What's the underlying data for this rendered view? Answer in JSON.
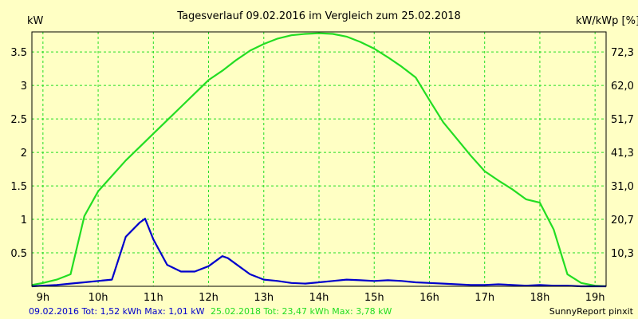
{
  "chart_data": {
    "type": "line",
    "title": "Tagesverlauf 09.02.2016 im Vergleich zum 25.02.2018",
    "ylabel_left": "kW",
    "ylabel_right": "kW/kWp [%]",
    "x_tick_labels": [
      "9h",
      "10h",
      "11h",
      "12h",
      "13h",
      "14h",
      "15h",
      "16h",
      "17h",
      "18h",
      "19h"
    ],
    "y_tick_labels_left": [
      "0.5",
      "1",
      "1.5",
      "2",
      "2.5",
      "3",
      "3.5"
    ],
    "y_tick_labels_right": [
      "10,3",
      "20,7",
      "31,0",
      "41,3",
      "51,7",
      "62,0",
      "72,3"
    ],
    "xlim": [
      8.8,
      19.2
    ],
    "ylim": [
      0,
      3.8
    ],
    "grid": true,
    "series": [
      {
        "name": "25.02.2018",
        "color": "#22DD22",
        "x": [
          8.8,
          9.0,
          9.25,
          9.5,
          9.75,
          10.0,
          10.25,
          10.5,
          10.75,
          11.0,
          11.25,
          11.5,
          11.75,
          12.0,
          12.25,
          12.5,
          12.75,
          13.0,
          13.25,
          13.5,
          13.75,
          14.0,
          14.25,
          14.5,
          14.75,
          15.0,
          15.25,
          15.5,
          15.75,
          16.0,
          16.25,
          16.5,
          16.75,
          17.0,
          17.25,
          17.5,
          17.75,
          18.0,
          18.25,
          18.5,
          18.75,
          19.0,
          19.2
        ],
        "y": [
          0.02,
          0.05,
          0.1,
          0.18,
          1.05,
          1.42,
          1.65,
          1.88,
          2.08,
          2.28,
          2.48,
          2.68,
          2.88,
          3.08,
          3.22,
          3.38,
          3.52,
          3.62,
          3.7,
          3.75,
          3.77,
          3.78,
          3.77,
          3.73,
          3.65,
          3.55,
          3.42,
          3.28,
          3.12,
          2.78,
          2.45,
          2.2,
          1.95,
          1.72,
          1.58,
          1.45,
          1.3,
          1.25,
          0.85,
          0.18,
          0.05,
          0.01,
          0.0
        ]
      },
      {
        "name": "09.02.2016",
        "color": "#0000CC",
        "x": [
          8.8,
          9.0,
          9.25,
          9.5,
          9.75,
          10.0,
          10.25,
          10.5,
          10.75,
          10.85,
          11.0,
          11.25,
          11.5,
          11.75,
          12.0,
          12.25,
          12.35,
          12.5,
          12.75,
          13.0,
          13.25,
          13.5,
          13.75,
          14.0,
          14.25,
          14.5,
          14.75,
          15.0,
          15.25,
          15.5,
          15.75,
          16.0,
          16.25,
          16.5,
          16.75,
          17.0,
          17.25,
          17.5,
          17.75,
          18.0,
          18.25,
          18.5,
          18.75,
          19.0,
          19.2
        ],
        "y": [
          0.0,
          0.01,
          0.02,
          0.04,
          0.06,
          0.08,
          0.1,
          0.74,
          0.95,
          1.01,
          0.7,
          0.32,
          0.22,
          0.22,
          0.3,
          0.45,
          0.42,
          0.33,
          0.18,
          0.1,
          0.08,
          0.05,
          0.04,
          0.06,
          0.08,
          0.1,
          0.09,
          0.08,
          0.09,
          0.08,
          0.06,
          0.05,
          0.04,
          0.03,
          0.02,
          0.02,
          0.03,
          0.02,
          0.01,
          0.02,
          0.01,
          0.01,
          0.0,
          0.0,
          0.0
        ]
      }
    ]
  },
  "footer": {
    "left_part1": "09.02.2016 Tot: 1,52 kWh Max: 1,01 kW",
    "left_part2": "25.02.2018 Tot: 23,47 kWh Max: 3,78 kW",
    "right": "SunnyReport pinxit"
  },
  "colors": {
    "background": "#FFFFC4",
    "grid": "#22DD22",
    "series_2018": "#22DD22",
    "series_2016": "#0000CC"
  }
}
